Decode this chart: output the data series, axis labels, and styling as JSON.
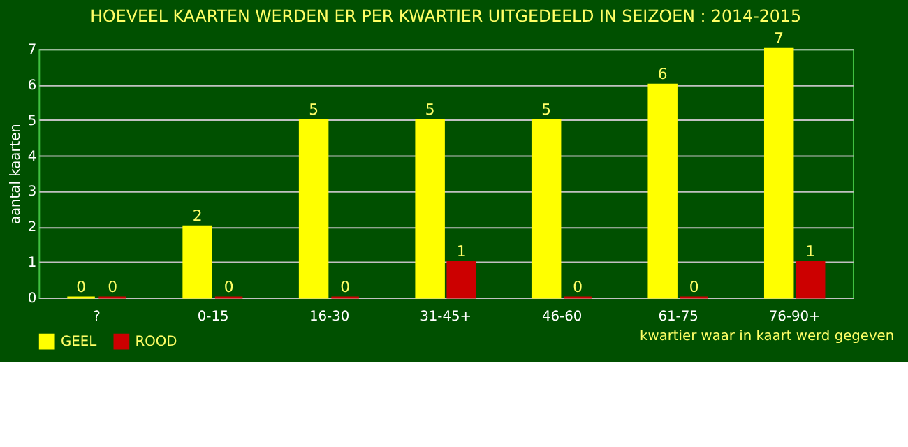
{
  "chart_data": {
    "type": "bar",
    "title": "HOEVEEL KAARTEN WERDEN ER PER KWARTIER UITGEDEELD IN SEIZOEN : 2014-2015",
    "xlabel": "kwartier waar in kaart werd gegeven",
    "ylabel": "aantal kaarten",
    "categories": [
      "?",
      "0-15",
      "16-30",
      "31-45+",
      "46-60",
      "61-75",
      "76-90+"
    ],
    "series": [
      {
        "name": "GEEL",
        "color": "#ffff00",
        "values": [
          0,
          2,
          5,
          5,
          5,
          6,
          7
        ]
      },
      {
        "name": "ROOD",
        "color": "#cc0000",
        "values": [
          0,
          0,
          0,
          1,
          0,
          0,
          1
        ]
      }
    ],
    "ylim": [
      0,
      7
    ],
    "yticks": [
      0,
      1,
      2,
      3,
      4,
      5,
      6,
      7
    ],
    "grid": "y",
    "legend": "bottom",
    "data_labels": true
  }
}
